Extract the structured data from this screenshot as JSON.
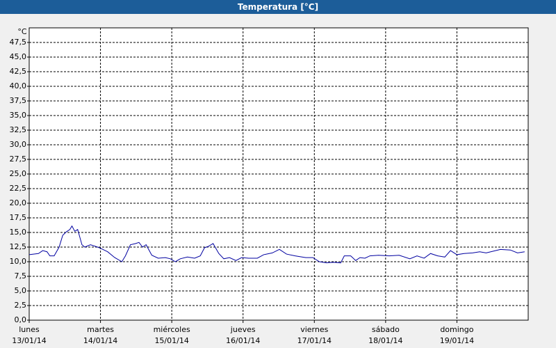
{
  "chart_data": {
    "type": "line",
    "title": "Temperatura [°C]",
    "y_unit": "°C",
    "xlim": [
      0,
      7
    ],
    "ylim": [
      0,
      50
    ],
    "xticks": [
      {
        "value": 0,
        "label": "lunes"
      },
      {
        "value": 1,
        "label": "martes"
      },
      {
        "value": 2,
        "label": "miércoles"
      },
      {
        "value": 3,
        "label": "jueves"
      },
      {
        "value": 4,
        "label": "viernes"
      },
      {
        "value": 5,
        "label": "sábado"
      },
      {
        "value": 6,
        "label": "domingo"
      }
    ],
    "xtick_dates": [
      "13/01/14",
      "14/01/14",
      "15/01/14",
      "16/01/14",
      "17/01/14",
      "18/01/14",
      "19/01/14"
    ],
    "yticks": [
      {
        "value": 0,
        "label": "0,0"
      },
      {
        "value": 2.5,
        "label": "2,5"
      },
      {
        "value": 5,
        "label": "5,0"
      },
      {
        "value": 7.5,
        "label": "7,5"
      },
      {
        "value": 10,
        "label": "10,0"
      },
      {
        "value": 12.5,
        "label": "12,5"
      },
      {
        "value": 15,
        "label": "15,0"
      },
      {
        "value": 17.5,
        "label": "17,5"
      },
      {
        "value": 20,
        "label": "20,0"
      },
      {
        "value": 22.5,
        "label": "22,5"
      },
      {
        "value": 25,
        "label": "25,0"
      },
      {
        "value": 27.5,
        "label": "27,5"
      },
      {
        "value": 30,
        "label": "30,0"
      },
      {
        "value": 32.5,
        "label": "32,5"
      },
      {
        "value": 35,
        "label": "35,0"
      },
      {
        "value": 37.5,
        "label": "37,5"
      },
      {
        "value": 40,
        "label": "40,0"
      },
      {
        "value": 42.5,
        "label": "42,5"
      },
      {
        "value": 45,
        "label": "45,0"
      },
      {
        "value": 47.5,
        "label": "47,5"
      }
    ],
    "grid": true,
    "x": [
      0,
      0.13,
      0.19,
      0.25,
      0.29,
      0.35,
      0.42,
      0.47,
      0.52,
      0.57,
      0.6,
      0.64,
      0.68,
      0.74,
      0.78,
      0.86,
      0.96,
      1.0,
      1.1,
      1.2,
      1.3,
      1.35,
      1.42,
      1.49,
      1.54,
      1.59,
      1.64,
      1.72,
      1.81,
      1.91,
      1.98,
      2.05,
      2.12,
      2.22,
      2.32,
      2.4,
      2.46,
      2.51,
      2.58,
      2.66,
      2.73,
      2.81,
      2.9,
      2.98,
      3.08,
      3.2,
      3.29,
      3.41,
      3.51,
      3.61,
      3.73,
      3.88,
      3.98,
      4.07,
      4.17,
      4.27,
      4.37,
      4.42,
      4.51,
      4.58,
      4.64,
      4.71,
      4.78,
      4.9,
      5.05,
      5.19,
      5.34,
      5.44,
      5.54,
      5.63,
      5.73,
      5.83,
      5.91,
      6.0,
      6.1,
      6.22,
      6.32,
      6.41,
      6.51,
      6.61,
      6.75,
      6.85,
      6.95
    ],
    "series": [
      {
        "color": "#0000a0",
        "values": [
          11.2,
          11.4,
          11.9,
          11.7,
          11.0,
          11.0,
          12.5,
          14.5,
          15.1,
          15.5,
          16.1,
          15.2,
          15.5,
          12.9,
          12.5,
          12.9,
          12.5,
          12.3,
          11.7,
          10.7,
          10.0,
          11.0,
          12.9,
          13.1,
          13.3,
          12.5,
          12.9,
          11.1,
          10.6,
          10.7,
          10.5,
          10.0,
          10.5,
          10.8,
          10.6,
          11.0,
          12.4,
          12.6,
          13.1,
          11.4,
          10.5,
          10.7,
          10.2,
          10.7,
          10.6,
          10.6,
          11.2,
          11.5,
          12.1,
          11.3,
          11.0,
          10.7,
          10.7,
          10.0,
          9.8,
          9.9,
          9.8,
          11.0,
          11.0,
          10.2,
          10.7,
          10.6,
          11.0,
          11.1,
          11.0,
          11.1,
          10.5,
          11.0,
          10.6,
          11.4,
          11.0,
          10.8,
          11.9,
          11.2,
          11.4,
          11.5,
          11.7,
          11.5,
          11.8,
          12.1,
          12.0,
          11.5,
          11.7
        ]
      }
    ]
  }
}
